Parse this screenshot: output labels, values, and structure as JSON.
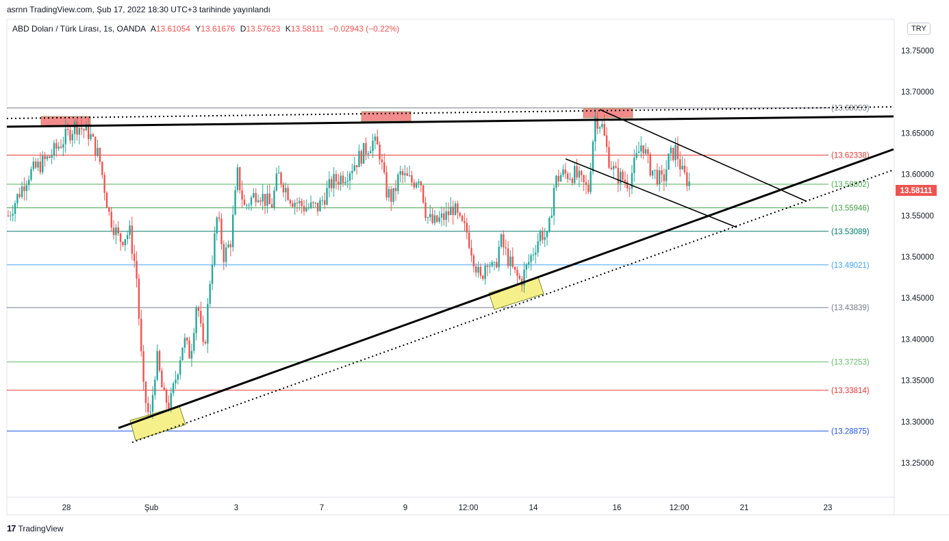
{
  "header": {
    "text": "asrnn TradingView.com, Şub 17, 2022 18:30 UTC+3 tarihinde yayınlandı"
  },
  "legend": {
    "symbol": "ABD Doları / Türk Lirası, 1s, OANDA",
    "open_label": "A",
    "open": "13.61054",
    "high_label": "Y",
    "high": "13.61676",
    "low_label": "D",
    "low": "13.57623",
    "close_label": "K",
    "close": "13.58111",
    "change": "−0.02943 (−0.22%)"
  },
  "currency_button": "TRY",
  "footer": {
    "logo_mark": "17",
    "brand": "TradingView"
  },
  "colors": {
    "up": "#26a69a",
    "down": "#ef5350",
    "current_price_bg": "#ef5350"
  },
  "chart_data": {
    "type": "candlestick",
    "y_axis_side": "right",
    "ylim": [
      13.215,
      13.795
    ],
    "y_ticks": [
      "13.75000",
      "13.70000",
      "13.65000",
      "13.60000",
      "13.55000",
      "13.50000",
      "13.45000",
      "13.40000",
      "13.35000",
      "13.30000",
      "13.25000"
    ],
    "x_ticks": [
      "28",
      "Şub",
      "3",
      "7",
      "9",
      "12:00",
      "14",
      "16",
      "12:00",
      "21",
      "23"
    ],
    "current_price": "13.58111",
    "horizontal_levels": [
      {
        "value": 13.68053,
        "label": "(13.68053)",
        "color": "#787b86"
      },
      {
        "value": 13.62338,
        "label": "(13.62338)",
        "color": "#e53935"
      },
      {
        "value": 13.58802,
        "label": "(13.58802)",
        "color": "#4caf50"
      },
      {
        "value": 13.55946,
        "label": "(13.55946)",
        "color": "#43a047"
      },
      {
        "value": 13.53089,
        "label": "(13.53089)",
        "color": "#00796b"
      },
      {
        "value": 13.49021,
        "label": "(13.49021)",
        "color": "#42a5f5"
      },
      {
        "value": 13.43839,
        "label": "(13.43839)",
        "color": "#787b86"
      },
      {
        "value": 13.37253,
        "label": "(13.37253)",
        "color": "#66bb6a"
      },
      {
        "value": 13.33814,
        "label": "(13.33814)",
        "color": "#e53935"
      },
      {
        "value": 13.28875,
        "label": "(13.28875)",
        "color": "#1e53e5"
      }
    ],
    "price_path": [
      [
        0,
        13.55
      ],
      [
        3,
        13.6
      ],
      [
        6,
        13.62
      ],
      [
        8,
        13.64
      ],
      [
        10,
        13.66
      ],
      [
        12,
        13.65
      ],
      [
        13.5,
        13.62
      ],
      [
        15,
        13.55
      ],
      [
        16.5,
        13.52
      ],
      [
        18,
        13.53
      ],
      [
        19,
        13.48
      ],
      [
        20,
        13.34
      ],
      [
        21,
        13.3
      ],
      [
        22,
        13.38
      ],
      [
        23,
        13.33
      ],
      [
        24,
        13.32
      ],
      [
        25,
        13.36
      ],
      [
        26,
        13.4
      ],
      [
        27,
        13.38
      ],
      [
        28,
        13.45
      ],
      [
        29,
        13.38
      ],
      [
        30,
        13.48
      ],
      [
        31,
        13.55
      ],
      [
        32,
        13.5
      ],
      [
        33,
        13.52
      ],
      [
        34,
        13.6
      ],
      [
        35,
        13.56
      ],
      [
        37,
        13.58
      ],
      [
        39,
        13.56
      ],
      [
        40,
        13.6
      ],
      [
        42,
        13.57
      ],
      [
        44,
        13.56
      ],
      [
        46,
        13.56
      ],
      [
        48,
        13.59
      ],
      [
        50,
        13.6
      ],
      [
        52,
        13.62
      ],
      [
        54,
        13.64
      ],
      [
        55,
        13.63
      ],
      [
        56,
        13.58
      ],
      [
        57,
        13.57
      ],
      [
        58,
        13.6
      ],
      [
        60,
        13.59
      ],
      [
        61,
        13.6
      ],
      [
        62,
        13.55
      ],
      [
        63,
        13.54
      ],
      [
        65,
        13.55
      ],
      [
        66,
        13.56
      ],
      [
        67,
        13.54
      ],
      [
        68,
        13.53
      ],
      [
        69,
        13.5
      ],
      [
        70,
        13.47
      ],
      [
        71,
        13.5
      ],
      [
        72,
        13.48
      ],
      [
        73,
        13.52
      ],
      [
        74,
        13.5
      ],
      [
        75,
        13.48
      ],
      [
        76,
        13.47
      ],
      [
        77,
        13.49
      ],
      [
        78,
        13.51
      ],
      [
        79,
        13.53
      ],
      [
        80,
        13.52
      ],
      [
        81,
        13.59
      ],
      [
        82,
        13.6
      ],
      [
        84,
        13.6
      ],
      [
        86,
        13.58
      ],
      [
        87,
        13.67
      ],
      [
        88,
        13.66
      ],
      [
        89,
        13.62
      ],
      [
        90,
        13.6
      ],
      [
        92,
        13.59
      ],
      [
        94,
        13.64
      ],
      [
        95,
        13.61
      ],
      [
        97,
        13.59
      ],
      [
        98,
        13.62
      ],
      [
        99,
        13.63
      ],
      [
        100,
        13.6
      ],
      [
        101,
        13.59
      ],
      [
        101.5,
        13.58111
      ]
    ]
  }
}
